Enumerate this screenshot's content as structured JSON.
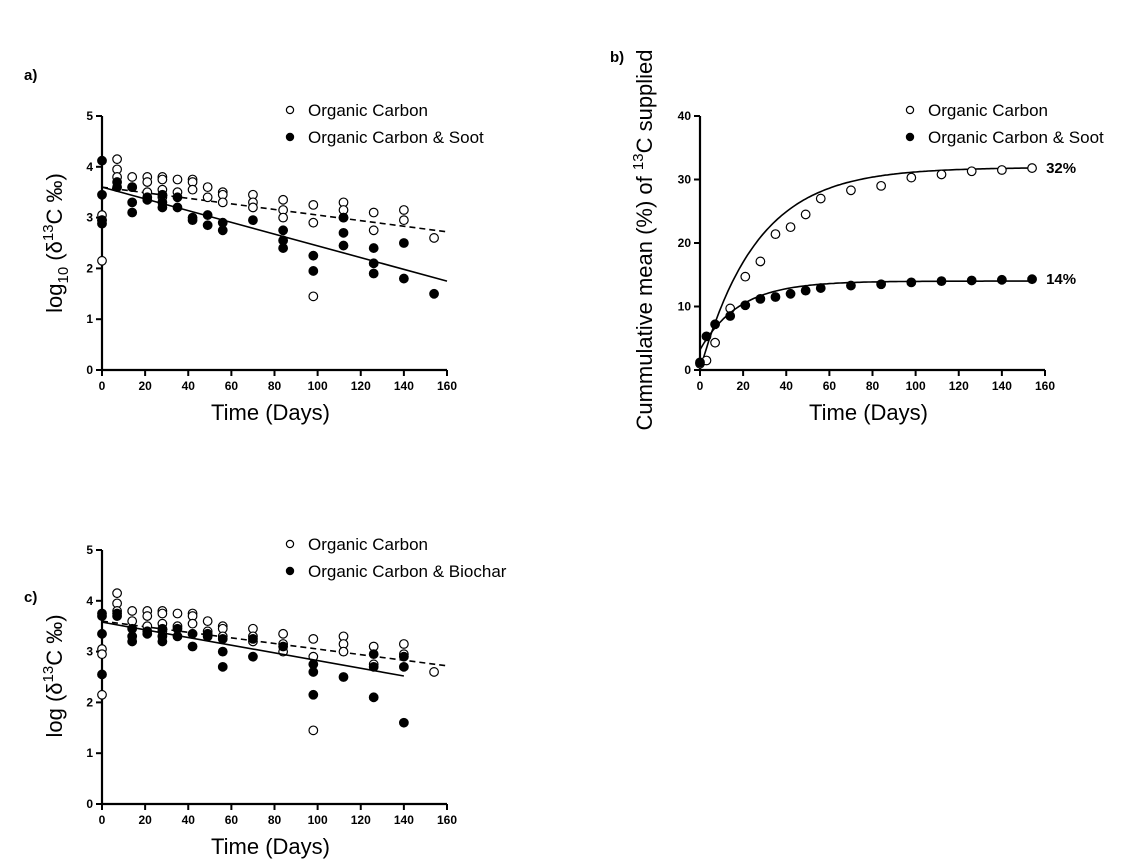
{
  "chart_data": [
    {
      "type": "scatter",
      "panel_label": "a)",
      "xlabel": "Time (Days)",
      "ylabel": {
        "base": "log",
        "sub": "10",
        "open": " (δ",
        "sup": "13",
        "close": "C ‰)"
      },
      "xlim": [
        0,
        160
      ],
      "ylim": [
        0,
        5
      ],
      "xticks": [
        "0",
        "20",
        "40",
        "60",
        "80",
        "100",
        "120",
        "140",
        "160"
      ],
      "yticks": [
        "0",
        "1",
        "2",
        "3",
        "4",
        "5"
      ],
      "series": [
        {
          "name": "Organic Carbon",
          "marker": "open",
          "points": [
            [
              0,
              3.05
            ],
            [
              0,
              2.95
            ],
            [
              0,
              2.15
            ],
            [
              7,
              4.15
            ],
            [
              7,
              3.95
            ],
            [
              7,
              3.8
            ],
            [
              14,
              3.8
            ],
            [
              14,
              3.6
            ],
            [
              21,
              3.8
            ],
            [
              21,
              3.7
            ],
            [
              21,
              3.5
            ],
            [
              28,
              3.8
            ],
            [
              28,
              3.75
            ],
            [
              28,
              3.55
            ],
            [
              28,
              3.4
            ],
            [
              35,
              3.75
            ],
            [
              35,
              3.5
            ],
            [
              42,
              3.75
            ],
            [
              42,
              3.7
            ],
            [
              42,
              3.55
            ],
            [
              49,
              3.6
            ],
            [
              49,
              3.4
            ],
            [
              56,
              3.5
            ],
            [
              56,
              3.45
            ],
            [
              56,
              3.3
            ],
            [
              70,
              3.45
            ],
            [
              70,
              3.3
            ],
            [
              70,
              3.2
            ],
            [
              84,
              3.35
            ],
            [
              84,
              3.15
            ],
            [
              84,
              3.0
            ],
            [
              98,
              3.25
            ],
            [
              98,
              2.9
            ],
            [
              98,
              1.45
            ],
            [
              112,
              3.3
            ],
            [
              112,
              3.15
            ],
            [
              112,
              3.0
            ],
            [
              126,
              3.1
            ],
            [
              126,
              2.75
            ],
            [
              140,
              3.15
            ],
            [
              140,
              2.95
            ],
            [
              154,
              2.6
            ]
          ],
          "fit": {
            "style": "dashed",
            "x": [
              0,
              160
            ],
            "y": [
              3.6,
              2.72
            ]
          }
        },
        {
          "name": "Organic Carbon & Soot",
          "marker": "filled",
          "points": [
            [
              0,
              4.12
            ],
            [
              0,
              3.45
            ],
            [
              0,
              2.95
            ],
            [
              0,
              2.88
            ],
            [
              7,
              3.7
            ],
            [
              7,
              3.6
            ],
            [
              14,
              3.6
            ],
            [
              14,
              3.3
            ],
            [
              14,
              3.1
            ],
            [
              21,
              3.4
            ],
            [
              21,
              3.35
            ],
            [
              28,
              3.45
            ],
            [
              28,
              3.3
            ],
            [
              28,
              3.2
            ],
            [
              35,
              3.4
            ],
            [
              35,
              3.2
            ],
            [
              42,
              3.0
            ],
            [
              42,
              2.95
            ],
            [
              49,
              3.05
            ],
            [
              49,
              2.85
            ],
            [
              56,
              2.9
            ],
            [
              56,
              2.75
            ],
            [
              70,
              2.95
            ],
            [
              84,
              2.75
            ],
            [
              84,
              2.55
            ],
            [
              84,
              2.4
            ],
            [
              98,
              2.25
            ],
            [
              98,
              1.95
            ],
            [
              112,
              3.0
            ],
            [
              112,
              2.7
            ],
            [
              112,
              2.45
            ],
            [
              126,
              2.4
            ],
            [
              126,
              2.1
            ],
            [
              126,
              1.9
            ],
            [
              140,
              2.5
            ],
            [
              140,
              1.8
            ],
            [
              154,
              1.5
            ]
          ],
          "fit": {
            "style": "solid",
            "x": [
              0,
              160
            ],
            "y": [
              3.6,
              1.75
            ]
          }
        }
      ]
    },
    {
      "type": "line",
      "panel_label": "b)",
      "xlabel": "Time (Days)",
      "ylabel": {
        "base": "Cummulative mean (%) of ",
        "sup": "13",
        "close": "C supplied"
      },
      "xlim": [
        0,
        160
      ],
      "ylim": [
        0,
        40
      ],
      "xticks": [
        "0",
        "20",
        "40",
        "60",
        "80",
        "100",
        "120",
        "140",
        "160"
      ],
      "yticks": [
        "0",
        "10",
        "20",
        "30",
        "40"
      ],
      "series": [
        {
          "name": "Organic Carbon",
          "marker": "open",
          "points": [
            [
              0,
              1.0
            ],
            [
              3,
              1.5
            ],
            [
              7,
              4.3
            ],
            [
              14,
              9.7
            ],
            [
              21,
              14.7
            ],
            [
              28,
              17.1
            ],
            [
              35,
              21.4
            ],
            [
              42,
              22.5
            ],
            [
              49,
              24.5
            ],
            [
              56,
              27.0
            ],
            [
              70,
              28.3
            ],
            [
              84,
              29.0
            ],
            [
              98,
              30.3
            ],
            [
              112,
              30.8
            ],
            [
              126,
              31.3
            ],
            [
              140,
              31.5
            ],
            [
              154,
              31.8
            ]
          ],
          "fit": {
            "type": "exp",
            "plateau": 31.9,
            "y0": 0.0,
            "k": 0.038
          },
          "end_label": "32%"
        },
        {
          "name": "Organic Carbon & Soot",
          "marker": "filled",
          "points": [
            [
              0,
              1.2
            ],
            [
              3,
              5.3
            ],
            [
              7,
              7.2
            ],
            [
              14,
              8.5
            ],
            [
              21,
              10.2
            ],
            [
              28,
              11.2
            ],
            [
              35,
              11.5
            ],
            [
              42,
              12.0
            ],
            [
              49,
              12.5
            ],
            [
              56,
              12.9
            ],
            [
              70,
              13.3
            ],
            [
              84,
              13.5
            ],
            [
              98,
              13.8
            ],
            [
              112,
              14.0
            ],
            [
              126,
              14.1
            ],
            [
              140,
              14.2
            ],
            [
              154,
              14.3
            ]
          ],
          "fit": {
            "type": "exp",
            "plateau": 14.0,
            "y0": 3.2,
            "k": 0.055
          },
          "end_label": "14%"
        }
      ]
    },
    {
      "type": "scatter",
      "panel_label": "c)",
      "xlabel": "Time (Days)",
      "ylabel": {
        "base": "log",
        "sub": "",
        "open": " (δ",
        "sup": "13",
        "close": "C ‰)"
      },
      "xlim": [
        0,
        160
      ],
      "ylim": [
        0,
        5
      ],
      "xticks": [
        "0",
        "20",
        "40",
        "60",
        "80",
        "100",
        "120",
        "140",
        "160"
      ],
      "yticks": [
        "0",
        "1",
        "2",
        "3",
        "4",
        "5"
      ],
      "series": [
        {
          "name": "Organic Carbon",
          "marker": "open",
          "points": [
            [
              0,
              3.05
            ],
            [
              0,
              2.95
            ],
            [
              0,
              2.15
            ],
            [
              7,
              4.15
            ],
            [
              7,
              3.95
            ],
            [
              7,
              3.8
            ],
            [
              14,
              3.8
            ],
            [
              14,
              3.6
            ],
            [
              21,
              3.8
            ],
            [
              21,
              3.7
            ],
            [
              21,
              3.5
            ],
            [
              28,
              3.8
            ],
            [
              28,
              3.75
            ],
            [
              28,
              3.55
            ],
            [
              28,
              3.4
            ],
            [
              35,
              3.75
            ],
            [
              35,
              3.5
            ],
            [
              42,
              3.75
            ],
            [
              42,
              3.7
            ],
            [
              42,
              3.55
            ],
            [
              49,
              3.6
            ],
            [
              49,
              3.4
            ],
            [
              56,
              3.5
            ],
            [
              56,
              3.45
            ],
            [
              56,
              3.3
            ],
            [
              70,
              3.45
            ],
            [
              70,
              3.3
            ],
            [
              70,
              3.2
            ],
            [
              84,
              3.35
            ],
            [
              84,
              3.15
            ],
            [
              84,
              3.0
            ],
            [
              98,
              3.25
            ],
            [
              98,
              2.9
            ],
            [
              98,
              1.45
            ],
            [
              112,
              3.3
            ],
            [
              112,
              3.15
            ],
            [
              112,
              3.0
            ],
            [
              126,
              3.1
            ],
            [
              126,
              2.75
            ],
            [
              140,
              3.15
            ],
            [
              140,
              2.95
            ],
            [
              154,
              2.6
            ]
          ],
          "fit": {
            "style": "dashed",
            "x": [
              0,
              160
            ],
            "y": [
              3.6,
              2.72
            ]
          }
        },
        {
          "name": "Organic Carbon & Biochar",
          "marker": "filled",
          "points": [
            [
              0,
              3.75
            ],
            [
              0,
              3.7
            ],
            [
              0,
              3.35
            ],
            [
              0,
              2.55
            ],
            [
              7,
              3.75
            ],
            [
              7,
              3.7
            ],
            [
              14,
              3.45
            ],
            [
              14,
              3.3
            ],
            [
              14,
              3.2
            ],
            [
              21,
              3.4
            ],
            [
              21,
              3.35
            ],
            [
              28,
              3.45
            ],
            [
              28,
              3.3
            ],
            [
              28,
              3.2
            ],
            [
              35,
              3.45
            ],
            [
              35,
              3.3
            ],
            [
              42,
              3.35
            ],
            [
              42,
              3.1
            ],
            [
              49,
              3.35
            ],
            [
              49,
              3.3
            ],
            [
              56,
              3.25
            ],
            [
              56,
              3.0
            ],
            [
              56,
              2.7
            ],
            [
              70,
              3.25
            ],
            [
              70,
              2.9
            ],
            [
              84,
              3.1
            ],
            [
              98,
              2.75
            ],
            [
              98,
              2.6
            ],
            [
              98,
              2.15
            ],
            [
              112,
              2.5
            ],
            [
              126,
              2.95
            ],
            [
              126,
              2.7
            ],
            [
              126,
              2.1
            ],
            [
              140,
              2.9
            ],
            [
              140,
              2.7
            ],
            [
              140,
              1.6
            ]
          ],
          "fit": {
            "style": "solid",
            "x": [
              0,
              140
            ],
            "y": [
              3.58,
              2.52
            ]
          }
        }
      ]
    }
  ]
}
